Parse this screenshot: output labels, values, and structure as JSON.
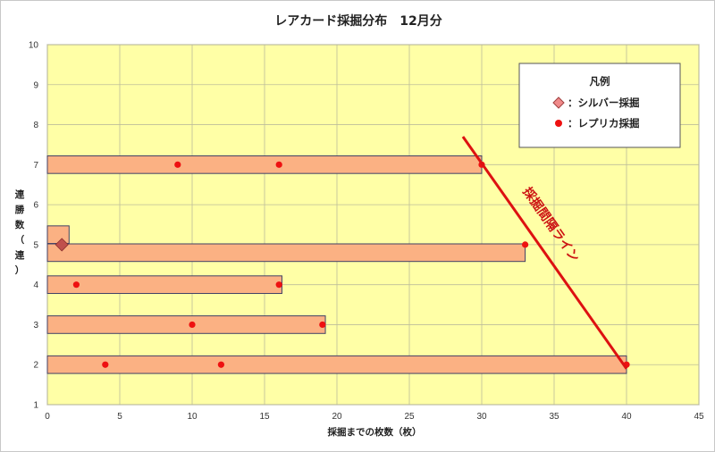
{
  "chart_data": {
    "type": "scatter",
    "title": "レアカード採掘分布　12月分",
    "xlabel": "採掘までの枚数（枚）",
    "ylabel_chars": [
      "連",
      "勝",
      "数",
      "（",
      "連",
      "）"
    ],
    "xlim": [
      0,
      45
    ],
    "ylim": [
      1,
      10
    ],
    "xticks": [
      0,
      5,
      10,
      15,
      20,
      25,
      30,
      35,
      40,
      45
    ],
    "yticks": [
      1,
      2,
      3,
      4,
      5,
      6,
      7,
      8,
      9,
      10
    ],
    "grid": true,
    "legend_position": "top-right",
    "legend_title": "凡例",
    "bars": [
      {
        "y": 7,
        "x_start": 0,
        "x_end": 30
      },
      {
        "y": 5.25,
        "x_start": 0,
        "x_end": 1.5
      },
      {
        "y": 4.8,
        "x_start": 0,
        "x_end": 33
      },
      {
        "y": 4,
        "x_start": 0,
        "x_end": 16.2
      },
      {
        "y": 3,
        "x_start": 0,
        "x_end": 19.2
      },
      {
        "y": 2,
        "x_start": 0,
        "x_end": 40
      }
    ],
    "series": [
      {
        "name": "：シルバー採掘",
        "marker": "diamond",
        "color": "#c0504d",
        "points": [
          {
            "x": 1,
            "y": 5
          }
        ]
      },
      {
        "name": "：レプリカ採掘",
        "marker": "circle",
        "color": "#ee1111",
        "points": [
          {
            "x": 9,
            "y": 7
          },
          {
            "x": 16,
            "y": 7
          },
          {
            "x": 30,
            "y": 7
          },
          {
            "x": 33,
            "y": 5
          },
          {
            "x": 2,
            "y": 4
          },
          {
            "x": 16,
            "y": 4
          },
          {
            "x": 10,
            "y": 3
          },
          {
            "x": 19,
            "y": 3
          },
          {
            "x": 4,
            "y": 2
          },
          {
            "x": 12,
            "y": 2
          },
          {
            "x": 40,
            "y": 2
          }
        ]
      }
    ],
    "annotation": {
      "label": "採掘間隔ライン",
      "line": [
        {
          "x": 28.7,
          "y": 7.7
        },
        {
          "x": 40,
          "y": 1.9
        }
      ]
    },
    "colors": {
      "plot_background": "#ffffa6",
      "bar_fill": "#fbb183",
      "bar_border": "#404065",
      "line": "#dd1111",
      "grid": "#bdbd9a"
    }
  }
}
